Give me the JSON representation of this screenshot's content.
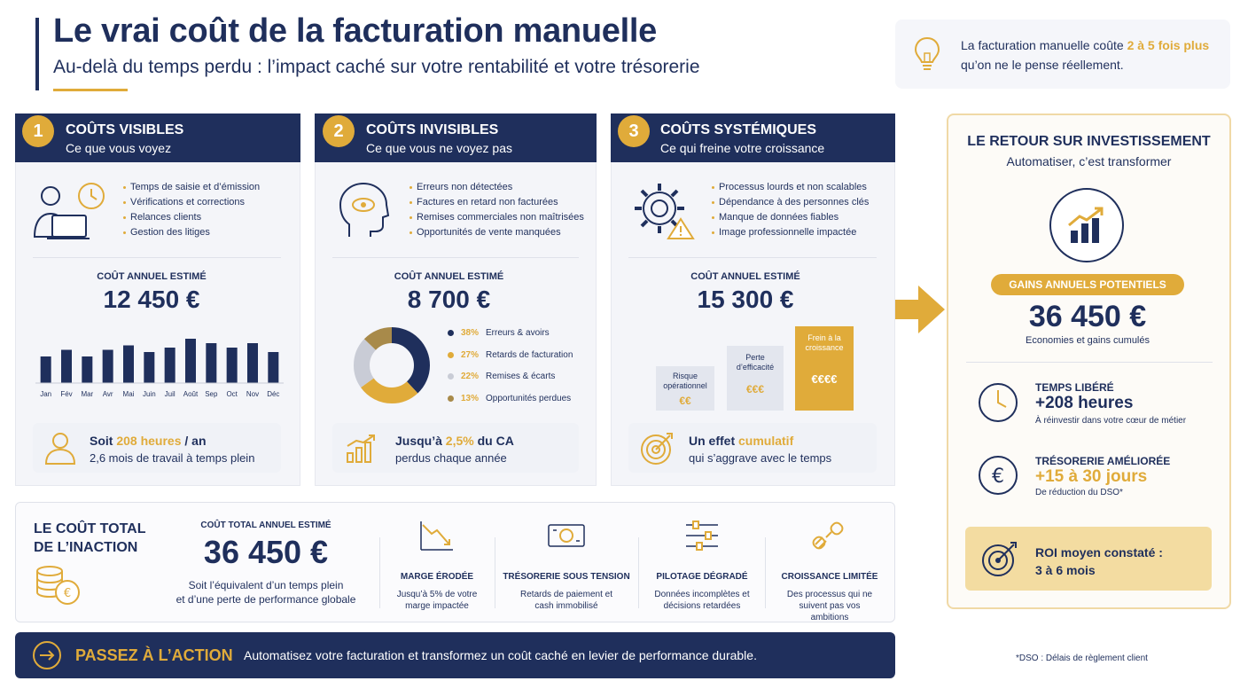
{
  "header": {
    "title": "Le vrai coût de la facturation manuelle",
    "subtitle": "Au-delà du temps perdu : l’impact caché sur votre rentabilité et votre trésorerie"
  },
  "tip": {
    "text_before": "La facturation manuelle coûte ",
    "highlight": "2 à 5 fois plus",
    "text_after": "qu’on ne le pense réellement."
  },
  "cards": [
    {
      "number": "1",
      "title": "COÛTS VISIBLES",
      "subtitle": "Ce que vous voyez",
      "bullets": [
        "Temps de saisie et d’émission",
        "Vérifications et corrections",
        "Relances clients",
        "Gestion des litiges"
      ],
      "est_label": "COÛT ANNUEL ESTIMÉ",
      "est_value": "12 450 €",
      "footer_pre": "Soit ",
      "footer_highlight": "208 heures",
      "footer_post": " / an",
      "footer_line2": "2,6 mois de travail à temps plein"
    },
    {
      "number": "2",
      "title": "COÛTS INVISIBLES",
      "subtitle": "Ce que vous ne voyez pas",
      "bullets": [
        "Erreurs non détectées",
        "Factures en retard non facturées",
        "Remises commerciales non maîtrisées",
        "Opportunités de vente manquées"
      ],
      "est_label": "COÛT ANNUEL ESTIMÉ",
      "est_value": "8 700 €",
      "footer_pre": "Jusqu’à ",
      "footer_highlight": "2,5%",
      "footer_post": " du CA",
      "footer_line2": "perdus chaque année"
    },
    {
      "number": "3",
      "title": "COÛTS SYSTÉMIQUES",
      "subtitle": "Ce qui freine votre croissance",
      "bullets": [
        "Processus lourds et non scalables",
        "Dépendance à des personnes clés",
        "Manque de données fiables",
        "Image professionnelle impactée"
      ],
      "est_label": "COÛT ANNUEL ESTIMÉ",
      "est_value": "15 300 €",
      "footer_pre": "Un effet ",
      "footer_highlight": "cumulatif",
      "footer_post": "",
      "footer_line2": "qui s’aggrave avec le temps"
    }
  ],
  "monthly_chart": {
    "months": [
      "Jan",
      "Fév",
      "Mar",
      "Avr",
      "Mai",
      "Juin",
      "Juil",
      "Août",
      "Sep",
      "Oct",
      "Nov",
      "Déc"
    ],
    "values": [
      6,
      7.5,
      6,
      7.5,
      8.5,
      7,
      8,
      10,
      9,
      8,
      9,
      7
    ]
  },
  "donut": {
    "items": [
      {
        "pct": 38,
        "label": "38%",
        "name": "Erreurs & avoirs",
        "color": "#1f2f5c"
      },
      {
        "pct": 27,
        "label": "27%",
        "name": "Retards de facturation",
        "color": "#e0ab3a"
      },
      {
        "pct": 22,
        "label": "22%",
        "name": "Remises & écarts",
        "color": "#c9ccd6"
      },
      {
        "pct": 13,
        "label": "13%",
        "name": "Opportunités perdues",
        "color": "#a88a4a"
      }
    ]
  },
  "systemic_bars": [
    {
      "label": "Risque opérationnel",
      "value": "€€",
      "level": 2
    },
    {
      "label": "Perte d’efficacité",
      "value": "€€€",
      "level": 3
    },
    {
      "label": "Frein à la croissance",
      "value": "€€€€",
      "level": 4
    }
  ],
  "total": {
    "title_line1": "LE COÛT TOTAL",
    "title_line2": "DE L’INACTION",
    "est_label": "COÛT TOTAL ANNUEL ESTIMÉ",
    "value": "36 450 €",
    "desc_line1": "Soit l’équivalent d’un temps plein",
    "desc_line2": "et d’une perte de performance globale",
    "impacts": [
      {
        "title": "MARGE ÉRODÉE",
        "desc": "Jusqu’à 5% de votre marge impactée"
      },
      {
        "title": "TRÉSORERIE SOUS TENSION",
        "desc": "Retards de paiement et cash immobilisé"
      },
      {
        "title": "PILOTAGE DÉGRADÉ",
        "desc": "Données incomplètes et décisions retardées"
      },
      {
        "title": "CROISSANCE LIMITÉE",
        "desc": "Des processus qui ne suivent pas vos ambitions"
      }
    ]
  },
  "action": {
    "button": "PASSEZ À L’ACTION",
    "text": "Automatisez votre facturation et transformez un coût caché en levier de performance durable."
  },
  "roi": {
    "title": "LE RETOUR SUR INVESTISSEMENT",
    "subtitle": "Automatiser, c’est transformer",
    "pill": "GAINS ANNUELS POTENTIELS",
    "value": "36 450 €",
    "value_desc": "Economies et gains cumulés",
    "time_title": "TEMPS LIBÉRÉ",
    "time_value": "+208 heures",
    "time_desc": "À réinvestir dans votre cœur de métier",
    "treasury_title": "TRÉSORERIE AMÉLIORÉE",
    "treasury_value": "+15 à 30 jours",
    "treasury_desc": "De réduction du DSO*",
    "roi_line1": "ROI moyen constaté :",
    "roi_line2": "3 à 6 mois"
  },
  "footnote": "*DSO : Délais de règlement client"
}
